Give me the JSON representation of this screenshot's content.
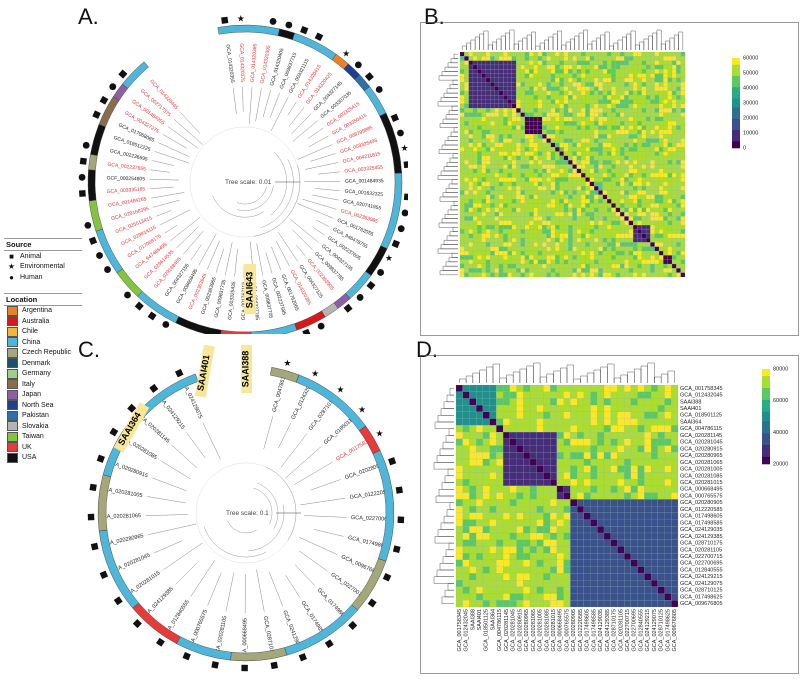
{
  "panels": {
    "a": {
      "letter": "A.",
      "tree_scale": "Tree scale: 0.01",
      "highlight": "SAAl643"
    },
    "b": {
      "letter": "B."
    },
    "c": {
      "letter": "C.",
      "tree_scale": "Tree scale: 0.1",
      "highlights": [
        "SAAI364",
        "SAAI401",
        "SAAl388"
      ]
    },
    "d": {
      "letter": "D."
    }
  },
  "legend": {
    "source_title": "Source",
    "source": [
      {
        "symbol": "square",
        "label": "Animal"
      },
      {
        "symbol": "star",
        "label": "Environmental"
      },
      {
        "symbol": "circle",
        "label": "Human"
      }
    ],
    "location_title": "Location",
    "locations": [
      {
        "label": "Argentina",
        "color": "#e8822a"
      },
      {
        "label": "Australia",
        "color": "#d7191c"
      },
      {
        "label": "Chile",
        "color": "#f5b43a"
      },
      {
        "label": "China",
        "color": "#4fb5d9"
      },
      {
        "label": "Czech Republic",
        "color": "#a3a77a"
      },
      {
        "label": "Denmark",
        "color": "#1d4f6e"
      },
      {
        "label": "Germany",
        "color": "#9fd08a"
      },
      {
        "label": "Italy",
        "color": "#8a6c4f"
      },
      {
        "label": "Japan",
        "color": "#8c5fa8"
      },
      {
        "label": "North Sea",
        "color": "#1f3e8c"
      },
      {
        "label": "Pakistan",
        "color": "#2e6fa5"
      },
      {
        "label": "Slovakia",
        "color": "#b5b5b5"
      },
      {
        "label": "Taiwan",
        "color": "#84c341"
      },
      {
        "label": "UK",
        "color": "#e43b3b"
      },
      {
        "label": "USA",
        "color": "#111111"
      }
    ]
  },
  "tree_a_labels": [
    {
      "t": "GCA_014320355",
      "red": false
    },
    {
      "t": "GCA_014320375",
      "red": true
    },
    {
      "t": "GCA_014320385",
      "red": true
    },
    {
      "t": "GCA_014320395",
      "red": true
    },
    {
      "t": "GCA_014320405",
      "red": false
    },
    {
      "t": "GCA_009837715",
      "red": false
    },
    {
      "t": "GCA_003321115",
      "red": false
    },
    {
      "t": "GCA_014320415",
      "red": true
    },
    {
      "t": "GCA_014320425",
      "red": true
    },
    {
      "t": "GCA_004327145",
      "red": false
    },
    {
      "t": "GCA_003307035",
      "red": false
    },
    {
      "t": "GCA_003325415",
      "red": true
    },
    {
      "t": "GCA_003350415",
      "red": true
    },
    {
      "t": "GCA_008799885",
      "red": true
    },
    {
      "t": "GCA_003325495",
      "red": true
    },
    {
      "t": "GCA_004211815",
      "red": true
    },
    {
      "t": "GCA_003325455",
      "red": true
    },
    {
      "t": "GCA_001484935",
      "red": false
    },
    {
      "t": "GCA_001632325",
      "red": false
    },
    {
      "t": "GCA_020741955",
      "red": false
    },
    {
      "t": "GCA_002363985",
      "red": true
    },
    {
      "t": "GCA_001762055",
      "red": false
    },
    {
      "t": "GCA_946478755",
      "red": false
    },
    {
      "t": "GCA_002237605",
      "red": false
    },
    {
      "t": "GCA_004327195",
      "red": false
    },
    {
      "t": "GCA_009837785",
      "red": false
    },
    {
      "t": "GCA_002363905",
      "red": true
    },
    {
      "t": "GCA_004327125",
      "red": false
    },
    {
      "t": "GCA_014320365",
      "red": true
    },
    {
      "t": "GCA_001762065",
      "red": false
    },
    {
      "t": "GCA_002237585",
      "red": false
    },
    {
      "t": "GCA_009837705",
      "red": false
    },
    {
      "t": "GCA_004327165",
      "red": false
    },
    {
      "t": "GCA_001762115",
      "red": false
    },
    {
      "t": "GCA_003325435",
      "red": false
    },
    {
      "t": "GCA_009837735",
      "red": false
    },
    {
      "t": "GCA_002363965",
      "red": false
    },
    {
      "t": "GCA_002363945",
      "red": true
    },
    {
      "t": "GCA_008668495",
      "red": false
    },
    {
      "t": "GCA_004327155",
      "red": false
    },
    {
      "t": "GCA_029168465",
      "red": true
    },
    {
      "t": "GCA_029614535",
      "red": true
    },
    {
      "t": "GCA_947486495",
      "red": true
    },
    {
      "t": "GCA_017068175",
      "red": true
    },
    {
      "t": "GCA_029814115",
      "red": true
    },
    {
      "t": "GCA_025513415",
      "red": true
    },
    {
      "t": "GCA_029168395",
      "red": true
    },
    {
      "t": "GCA_001484265",
      "red": true
    },
    {
      "t": "GCA_003335165",
      "red": true
    },
    {
      "t": "GCF_000254805",
      "red": false
    },
    {
      "t": "GCA_002237655",
      "red": true
    },
    {
      "t": "GCA_002236695",
      "red": false
    },
    {
      "t": "GCA_018512225",
      "red": false
    },
    {
      "t": "GCA_017068085",
      "red": false
    },
    {
      "t": "GCA_004327275",
      "red": true
    },
    {
      "t": "GCA_001484955",
      "red": true
    },
    {
      "t": "GCA_002717375",
      "red": true
    },
    {
      "t": "GCA_014320445",
      "red": true
    }
  ],
  "tree_c_labels": [
    "GCA_004786115",
    "GCA_012432045",
    "GCA_028710125",
    "GCA_018501125",
    "GCA_001758345",
    "GCA_020280905",
    "GCA_012220585",
    "GCA_022700695",
    "GCA_017498625",
    "GCA_009676805",
    "GCA_022700715",
    "GCA_017498605",
    "GCA_017498585",
    "GCA_024129035",
    "GCA_028710175",
    "GCA_000668495",
    "GCA_020281105",
    "GCA_000765575",
    "GCA_012840555",
    "GCA_024129385",
    "GCA_020281015",
    "GCA_020281045",
    "GCA_020280965",
    "GCA_020281065",
    "GCA_020281005",
    "GCA_020280915",
    "GCA_020281085",
    "GCA_020281145",
    "GCA_024129215",
    "GCA_024129075"
  ],
  "heatmap_b": {
    "colorbar_ticks": [
      "60000",
      "50000",
      "40000",
      "30000",
      "20000",
      "10000",
      "0"
    ]
  },
  "heatmap_d": {
    "colorbar_ticks": [
      "80000",
      "60000",
      "40000",
      "20000"
    ],
    "labels": [
      "GCA_001758345",
      "GCA_012432045",
      "SAAl388",
      "SAAl401",
      "GCA_018501125",
      "SAAl364",
      "GCA_004786115",
      "GCA_020281145",
      "GCA_020281045",
      "GCA_020280915",
      "GCA_020280965",
      "GCA_020281065",
      "GCA_020281005",
      "GCA_020281085",
      "GCA_020281015",
      "GCA_000668495",
      "GCA_000765575",
      "GCA_020280905",
      "GCA_012220585",
      "GCA_017498605",
      "GCA_017498585",
      "GCA_024129035",
      "GCA_024129385",
      "GCA_028710175",
      "GCA_020281105",
      "GCA_022700715",
      "GCA_022700695",
      "GCA_012840555",
      "GCA_024129215",
      "GCA_024129075",
      "GCA_028710125",
      "GCA_017498625",
      "GCA_009676805"
    ]
  }
}
